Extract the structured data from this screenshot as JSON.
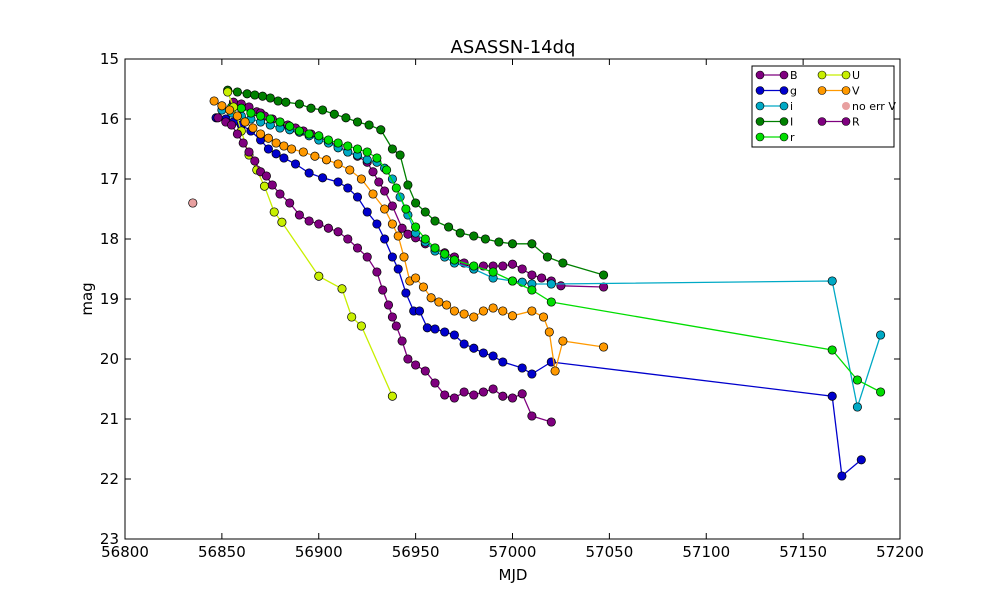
{
  "chart_data": {
    "type": "scatter",
    "title": "ASASSN-14dq",
    "xlabel": "MJD",
    "ylabel": "mag",
    "xlim": [
      56800,
      57200
    ],
    "ylim": [
      15,
      23
    ],
    "y_inverted": true,
    "x_ticks": [
      56800,
      56850,
      56900,
      56950,
      57000,
      57050,
      57100,
      57150,
      57200
    ],
    "x_tick_labels": [
      "56800",
      "56850",
      "56900",
      "56950",
      "57000",
      "57050",
      "57100",
      "57150",
      "57200"
    ],
    "y_ticks": [
      15,
      16,
      17,
      18,
      19,
      20,
      21,
      22,
      23
    ],
    "y_tick_labels": [
      "15",
      "16",
      "17",
      "18",
      "19",
      "20",
      "21",
      "22",
      "23"
    ],
    "grid": false,
    "legend_position": "top-right",
    "legend_columns": 2,
    "series": [
      {
        "name": "B",
        "color": "#7f007f",
        "style": "line+markers",
        "x": [
          56856,
          56860,
          56864,
          56868,
          56870,
          56872,
          56876,
          56880,
          56884,
          56888,
          56892,
          56896,
          56900,
          56905,
          56910,
          56915,
          56920,
          56925,
          56928,
          56931,
          56934,
          56938,
          56943,
          56946,
          56950,
          56955,
          56960,
          56965,
          56970,
          56975,
          56980,
          56985,
          56990,
          56995,
          57000,
          57005,
          57010,
          57015,
          57020,
          57025,
          57047
        ],
        "y": [
          15.72,
          15.75,
          15.8,
          15.88,
          15.9,
          15.95,
          16.0,
          16.05,
          16.1,
          16.15,
          16.2,
          16.25,
          16.3,
          16.38,
          16.45,
          16.55,
          16.62,
          16.72,
          16.88,
          17.05,
          17.2,
          17.45,
          17.82,
          17.92,
          17.98,
          18.08,
          18.15,
          18.23,
          18.3,
          18.4,
          18.5,
          18.45,
          18.45,
          18.45,
          18.42,
          18.5,
          18.6,
          18.65,
          18.7,
          18.78,
          18.8
        ]
      },
      {
        "name": "g",
        "color": "#0000cc",
        "style": "line+markers",
        "x": [
          56847,
          56852,
          56856,
          56860,
          56865,
          56870,
          56874,
          56878,
          56882,
          56888,
          56895,
          56902,
          56910,
          56915,
          56920,
          56925,
          56930,
          56934,
          56938,
          56941,
          56945,
          56949,
          56952,
          56956,
          56960,
          56965,
          56970,
          56975,
          56980,
          56985,
          56990,
          56995,
          57005,
          57010,
          57020,
          57165,
          57170,
          57180
        ],
        "y": [
          15.98,
          16.0,
          16.05,
          16.1,
          16.2,
          16.35,
          16.5,
          16.58,
          16.65,
          16.75,
          16.9,
          16.98,
          17.05,
          17.15,
          17.3,
          17.55,
          17.75,
          18.0,
          18.3,
          18.5,
          18.9,
          19.2,
          19.2,
          19.48,
          19.5,
          19.55,
          19.6,
          19.75,
          19.82,
          19.9,
          19.95,
          20.05,
          20.15,
          20.25,
          20.05,
          20.62,
          21.95,
          21.68
        ]
      },
      {
        "name": "i",
        "color": "#00a9c5",
        "style": "line+markers",
        "x": [
          56850,
          56855,
          56860,
          56865,
          56870,
          56875,
          56880,
          56885,
          56890,
          56895,
          56900,
          56905,
          56910,
          56915,
          56920,
          56925,
          56930,
          56934,
          56938,
          56942,
          56946,
          56950,
          56955,
          56960,
          56965,
          56970,
          56980,
          56990,
          57000,
          57005,
          57010,
          57020,
          57165,
          57178,
          57190
        ],
        "y": [
          15.85,
          15.9,
          15.95,
          16.0,
          16.05,
          16.1,
          16.15,
          16.18,
          16.22,
          16.28,
          16.35,
          16.4,
          16.48,
          16.55,
          16.6,
          16.68,
          16.72,
          16.82,
          17.0,
          17.3,
          17.6,
          17.9,
          18.05,
          18.2,
          18.3,
          18.4,
          18.5,
          18.65,
          18.7,
          18.72,
          18.75,
          18.75,
          18.7,
          20.8,
          19.6
        ]
      },
      {
        "name": "I",
        "color": "#008000",
        "style": "line+markers",
        "x": [
          56853,
          56858,
          56863,
          56867,
          56871,
          56875,
          56879,
          56883,
          56890,
          56896,
          56902,
          56908,
          56914,
          56920,
          56926,
          56932,
          56938,
          56942,
          56946,
          56950,
          56955,
          56960,
          56967,
          56973,
          56980,
          56986,
          56993,
          57000,
          57010,
          57018,
          57026,
          57047
        ],
        "y": [
          15.52,
          15.55,
          15.58,
          15.6,
          15.62,
          15.65,
          15.7,
          15.72,
          15.75,
          15.82,
          15.85,
          15.92,
          15.98,
          16.05,
          16.1,
          16.18,
          16.5,
          16.6,
          17.1,
          17.4,
          17.55,
          17.7,
          17.8,
          17.9,
          17.95,
          18.0,
          18.05,
          18.08,
          18.08,
          18.3,
          18.4,
          18.6
        ]
      },
      {
        "name": "r",
        "color": "#00dd00",
        "style": "line+markers",
        "x": [
          56855,
          56860,
          56865,
          56870,
          56875,
          56880,
          56885,
          56890,
          56895,
          56900,
          56905,
          56910,
          56915,
          56920,
          56925,
          56930,
          56935,
          56940,
          56945,
          56950,
          56955,
          56960,
          56965,
          56970,
          56980,
          56990,
          57000,
          57010,
          57020,
          57165,
          57178,
          57190
        ],
        "y": [
          15.8,
          15.82,
          15.9,
          15.95,
          16.0,
          16.05,
          16.12,
          16.2,
          16.25,
          16.28,
          16.35,
          16.4,
          16.45,
          16.5,
          16.55,
          16.65,
          16.85,
          17.15,
          17.5,
          17.8,
          18.0,
          18.15,
          18.25,
          18.35,
          18.45,
          18.55,
          18.7,
          18.85,
          19.05,
          19.85,
          20.35,
          20.55
        ]
      },
      {
        "name": "U",
        "color": "#c8ef00",
        "style": "line+markers",
        "x": [
          56853,
          56856,
          56860,
          56864,
          56868,
          56872,
          56877,
          56881,
          56900,
          56912,
          56917,
          56922,
          56938
        ],
        "y": [
          15.55,
          15.8,
          16.2,
          16.6,
          16.85,
          17.12,
          17.55,
          17.72,
          18.62,
          18.83,
          19.3,
          19.45,
          20.62
        ]
      },
      {
        "name": "V",
        "color": "#ff9900",
        "style": "line+markers",
        "x": [
          56846,
          56850,
          56854,
          56858,
          56862,
          56866,
          56870,
          56874,
          56878,
          56882,
          56886,
          56892,
          56898,
          56904,
          56910,
          56916,
          56922,
          56928,
          56934,
          56938,
          56941,
          56944,
          56947,
          56950,
          56954,
          56958,
          56962,
          56966,
          56970,
          56975,
          56980,
          56985,
          56990,
          56995,
          57000,
          57010,
          57016,
          57019,
          57022,
          57026,
          57047
        ],
        "y": [
          15.7,
          15.78,
          15.85,
          15.95,
          16.05,
          16.15,
          16.25,
          16.32,
          16.4,
          16.45,
          16.5,
          16.55,
          16.62,
          16.68,
          16.75,
          16.85,
          17.0,
          17.25,
          17.5,
          17.75,
          17.95,
          18.3,
          18.7,
          18.65,
          18.8,
          18.98,
          19.05,
          19.1,
          19.2,
          19.25,
          19.3,
          19.2,
          19.15,
          19.2,
          19.28,
          19.2,
          19.3,
          19.55,
          20.2,
          19.7,
          19.8
        ]
      },
      {
        "name": "no err V",
        "color": "#e8a0a0",
        "style": "markers",
        "x": [
          56835
        ],
        "y": [
          17.4
        ]
      },
      {
        "name": "R",
        "color": "#7f007f",
        "style": "line+markers",
        "x": [
          56848,
          56852,
          56855,
          56858,
          56861,
          56864,
          56867,
          56870,
          56873,
          56876,
          56880,
          56885,
          56890,
          56895,
          56900,
          56905,
          56910,
          56915,
          56920,
          56925,
          56930,
          56933,
          56936,
          56938,
          56940,
          56943,
          56946,
          56950,
          56955,
          56960,
          56965,
          56970,
          56975,
          56980,
          56985,
          56990,
          56995,
          57000,
          57005,
          57010,
          57020
        ],
        "y": [
          15.98,
          16.05,
          16.1,
          16.25,
          16.4,
          16.55,
          16.7,
          16.88,
          16.95,
          17.1,
          17.25,
          17.4,
          17.6,
          17.7,
          17.75,
          17.82,
          17.88,
          18.0,
          18.15,
          18.3,
          18.55,
          18.85,
          19.1,
          19.3,
          19.45,
          19.7,
          20.0,
          20.1,
          20.2,
          20.4,
          20.6,
          20.65,
          20.55,
          20.6,
          20.55,
          20.5,
          20.62,
          20.65,
          20.58,
          20.95,
          21.05
        ]
      }
    ]
  }
}
